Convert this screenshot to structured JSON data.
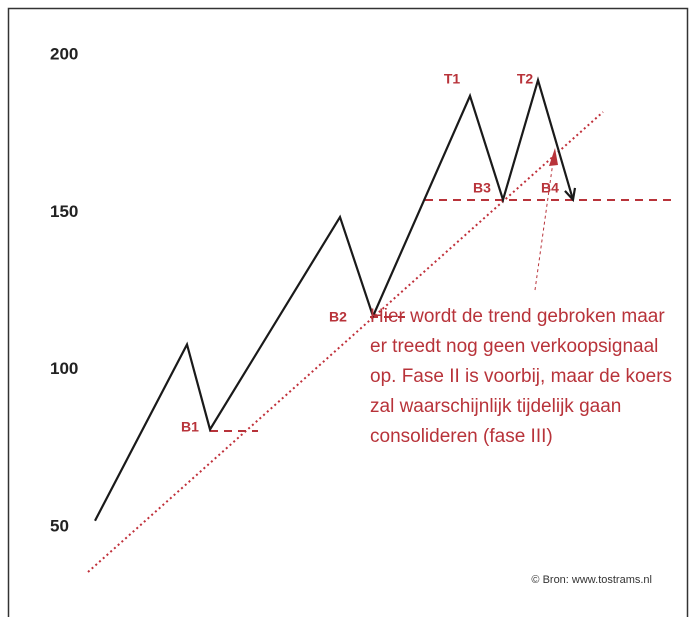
{
  "chart_data": {
    "type": "line",
    "x": [
      0,
      92,
      115,
      245,
      278,
      375,
      408,
      443,
      478
    ],
    "xlim": [
      -7,
      577
    ],
    "series": [
      {
        "color": "#1a1a1a",
        "values": [
          52,
          108,
          81,
          148.5,
          117,
          187,
          154,
          192,
          154
        ]
      }
    ],
    "ylim": [
      50,
      200
    ],
    "yticks": [
      50,
      100,
      150,
      200
    ],
    "grid": false,
    "point_labels": [
      "T1",
      "T2",
      "B1",
      "B2",
      "B3",
      "B4"
    ],
    "annotation": [
      "Hier wordt de trend gebroken maar",
      "er treedt nog geen verkoopsignaal",
      "op. Fase II is voorbij, maar de koers",
      "zal waarschijnlijk tijdelijk gaan",
      "consolideren (fase III)"
    ],
    "source": "© Bron: www.tostrams.nl"
  }
}
